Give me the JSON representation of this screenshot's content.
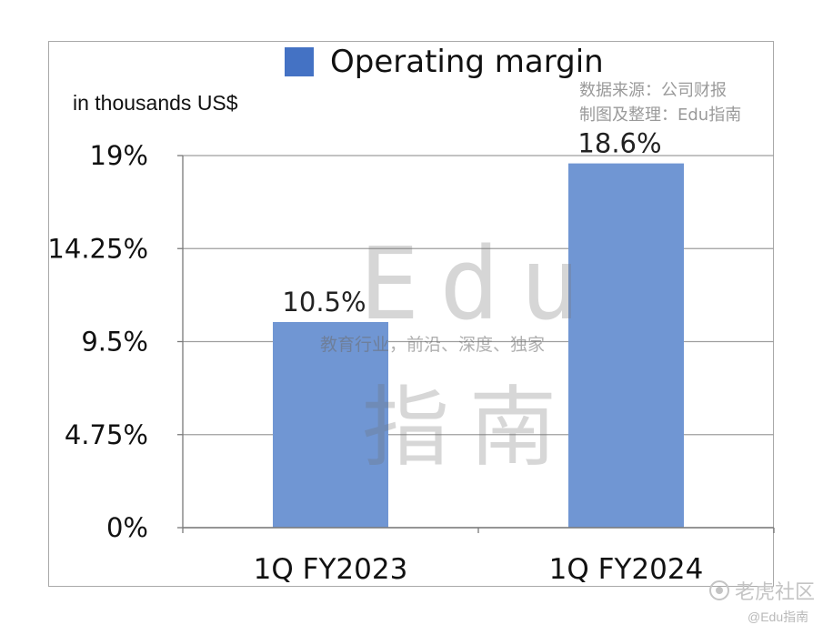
{
  "chart_data": {
    "type": "bar",
    "legend": [
      "Operating margin"
    ],
    "unit_label": "in thousands US$",
    "categories": [
      "1Q FY2023",
      "1Q FY2024"
    ],
    "series": [
      {
        "name": "Operating margin",
        "values": [
          10.5,
          18.6
        ]
      }
    ],
    "data_labels": [
      "10.5%",
      "18.6%"
    ],
    "yticks": [
      0,
      4.75,
      9.5,
      14.25,
      19
    ],
    "ytick_labels": [
      "0%",
      "4.75%",
      "9.5%",
      "14.25%",
      "19%"
    ],
    "ylim": [
      0,
      19
    ],
    "grid": true,
    "legend_position": "top",
    "bar_color": "#7096d3",
    "legend_color": "#4472c4"
  },
  "source_note": [
    "数据来源：公司财报",
    "制图及整理：Edu指南"
  ],
  "watermark": {
    "big": "Edu",
    "sub": "教育行业，前沿、深度、独家",
    "cn": "指南"
  },
  "footer": {
    "brand": "老虎社区",
    "handle": "@Edu指南"
  }
}
